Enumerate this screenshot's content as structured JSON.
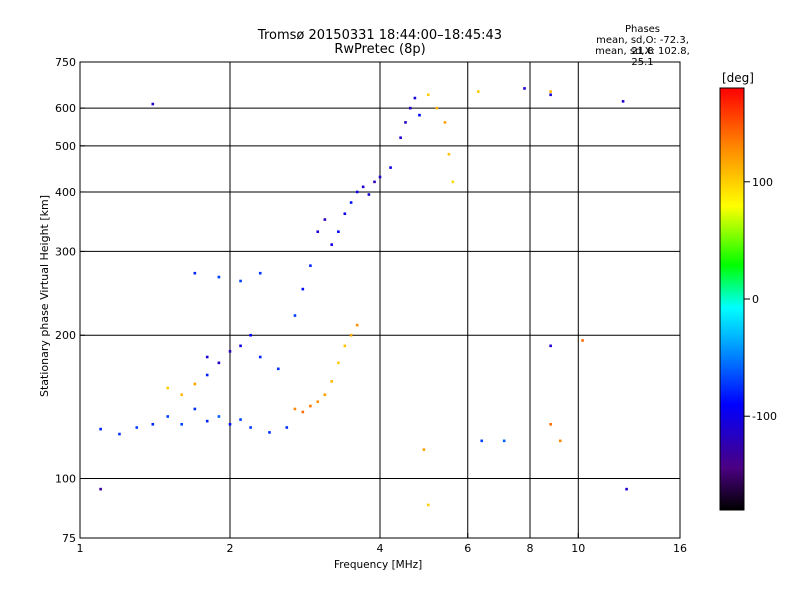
{
  "header": {
    "title_line1": "Tromsø 20150331 18:44:00–18:45:43",
    "title_line2": "RwPretec (8p)",
    "phases_title": "Phases",
    "phases_o": "mean, sd,O: -72.3, 21.8",
    "phases_x": "mean, sd,X: 102.8, 25.1"
  },
  "chart_data": {
    "type": "scatter",
    "xlabel": "Frequency [MHz]",
    "ylabel": "Stationary phase Virtual Height [km]",
    "xscale": "log",
    "yscale": "log",
    "xlim": [
      1,
      16
    ],
    "ylim": [
      75,
      750
    ],
    "xticks": [
      1,
      2,
      4,
      6,
      8,
      10,
      16
    ],
    "xtick_labels": [
      "1",
      "2",
      "4",
      "6",
      "8",
      "10",
      "16"
    ],
    "yticks": [
      75,
      100,
      200,
      300,
      400,
      500,
      600,
      750
    ],
    "ytick_labels": [
      "75",
      "100",
      "200",
      "300",
      "400",
      "500",
      "600",
      "750"
    ],
    "grid_x": [
      2,
      4,
      6,
      8,
      10
    ],
    "grid_y": [
      100,
      200,
      300,
      400,
      500,
      600
    ],
    "colorbar": {
      "label": "[deg]",
      "range": [
        -180,
        180
      ],
      "ticks": [
        100,
        0,
        -100
      ],
      "tick_labels": [
        "100",
        "0",
        "-100"
      ],
      "colors": [
        "#000000",
        "#4b0082",
        "#0000ff",
        "#00aaff",
        "#00ffff",
        "#00ff00",
        "#ffff00",
        "#ff8800",
        "#ff0000"
      ]
    },
    "series": [
      {
        "points": [
          [
            1.1,
            127,
            -80
          ],
          [
            1.2,
            124,
            -75
          ],
          [
            1.3,
            128,
            -70
          ],
          [
            1.4,
            130,
            -78
          ],
          [
            1.5,
            135,
            -72
          ],
          [
            1.6,
            130,
            -68
          ],
          [
            1.7,
            140,
            -74
          ],
          [
            1.8,
            132,
            -80
          ],
          [
            1.9,
            135,
            -60
          ],
          [
            2.0,
            130,
            -85
          ],
          [
            2.1,
            133,
            -70
          ],
          [
            2.2,
            128,
            -72
          ],
          [
            2.4,
            125,
            -75
          ],
          [
            2.6,
            128,
            -76
          ],
          [
            1.5,
            155,
            100
          ],
          [
            1.6,
            150,
            110
          ],
          [
            1.7,
            158,
            120
          ],
          [
            1.8,
            165,
            -80
          ],
          [
            1.9,
            175,
            -110
          ],
          [
            2.0,
            185,
            -120
          ],
          [
            2.1,
            190,
            -100
          ],
          [
            1.8,
            180,
            -105
          ],
          [
            2.2,
            200,
            -90
          ],
          [
            2.3,
            180,
            -80
          ],
          [
            2.5,
            170,
            -75
          ],
          [
            2.7,
            220,
            -70
          ],
          [
            2.8,
            250,
            -85
          ],
          [
            2.9,
            280,
            -78
          ],
          [
            3.0,
            330,
            -110
          ],
          [
            3.1,
            350,
            -120
          ],
          [
            3.2,
            310,
            -100
          ],
          [
            3.3,
            330,
            -90
          ],
          [
            3.4,
            360,
            -95
          ],
          [
            3.5,
            380,
            -85
          ],
          [
            3.6,
            400,
            -100
          ],
          [
            3.7,
            410,
            -110
          ],
          [
            3.8,
            395,
            -105
          ],
          [
            3.9,
            420,
            -120
          ],
          [
            4.0,
            430,
            -115
          ],
          [
            4.2,
            450,
            -100
          ],
          [
            4.4,
            520,
            -110
          ],
          [
            4.5,
            560,
            -120
          ],
          [
            4.6,
            600,
            -115
          ],
          [
            4.7,
            630,
            -105
          ],
          [
            4.8,
            580,
            -90
          ],
          [
            5.0,
            640,
            100
          ],
          [
            5.2,
            600,
            110
          ],
          [
            5.4,
            560,
            120
          ],
          [
            5.5,
            480,
            105
          ],
          [
            5.6,
            420,
            95
          ],
          [
            2.7,
            140,
            130
          ],
          [
            2.8,
            138,
            140
          ],
          [
            2.9,
            142,
            135
          ],
          [
            3.0,
            145,
            125
          ],
          [
            3.1,
            150,
            120
          ],
          [
            3.2,
            160,
            110
          ],
          [
            3.3,
            175,
            100
          ],
          [
            3.4,
            190,
            105
          ],
          [
            3.5,
            200,
            115
          ],
          [
            3.6,
            210,
            125
          ],
          [
            2.3,
            270,
            -75
          ],
          [
            2.1,
            260,
            -70
          ],
          [
            1.9,
            265,
            -72
          ],
          [
            1.7,
            270,
            -78
          ],
          [
            6.3,
            650,
            100
          ],
          [
            6.4,
            120,
            -70
          ],
          [
            7.1,
            120,
            -60
          ],
          [
            7.8,
            660,
            -110
          ],
          [
            8.8,
            650,
            110
          ],
          [
            8.8,
            640,
            -110
          ],
          [
            8.8,
            190,
            -110
          ],
          [
            8.8,
            130,
            140
          ],
          [
            9.2,
            120,
            130
          ],
          [
            10.2,
            195,
            140
          ],
          [
            12.3,
            620,
            -110
          ],
          [
            12.5,
            95,
            -110
          ],
          [
            1.1,
            95,
            -130
          ],
          [
            1.4,
            612,
            -110
          ],
          [
            4.9,
            115,
            120
          ],
          [
            5.0,
            88,
            100
          ]
        ]
      }
    ]
  }
}
